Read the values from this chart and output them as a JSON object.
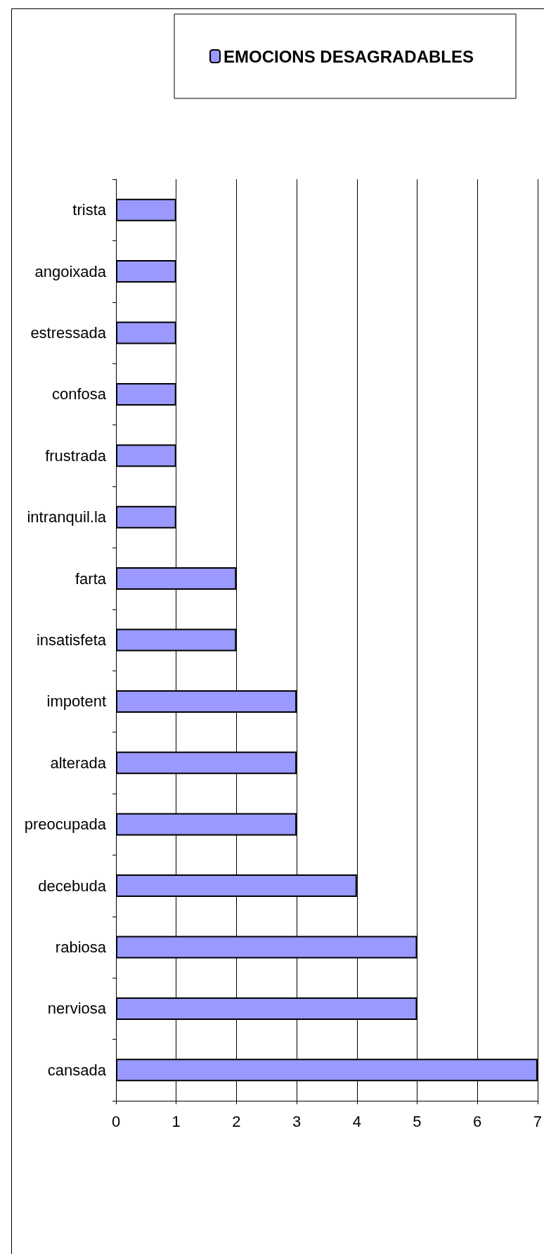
{
  "chart_data": {
    "type": "bar",
    "orientation": "horizontal",
    "legend": "top",
    "categories": [
      "trista",
      "angoixada",
      "estressada",
      "confosa",
      "frustrada",
      "intranquil.la",
      "farta",
      "insatisfeta",
      "impotent",
      "alterada",
      "preocupada",
      "decebuda",
      "rabiosa",
      "nerviosa",
      "cansada"
    ],
    "series": [
      {
        "name": "EMOCIONS DESAGRADABLES",
        "color": "#9999ff",
        "values": [
          1,
          1,
          1,
          1,
          1,
          1,
          2,
          2,
          3,
          3,
          3,
          4,
          5,
          5,
          7
        ]
      }
    ],
    "xlim": [
      0,
      7
    ],
    "xticks": [
      0,
      1,
      2,
      3,
      4,
      5,
      6,
      7
    ],
    "grid": "x"
  }
}
